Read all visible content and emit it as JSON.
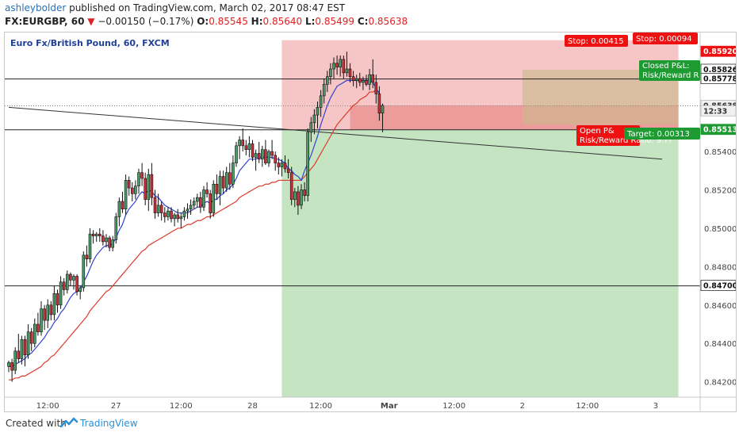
{
  "header": {
    "user": "ashleybolder",
    "published": " published on TradingView.com, March 02, 2017 08:47 EST",
    "symbol": "FX:EURGBP, 60",
    "change_text": "−0.00150 (−0.17%)",
    "o_label": "O:",
    "o_val": "0.85545",
    "h_label": "H:",
    "h_val": "0.85640",
    "l_label": "L:",
    "l_val": "0.85499",
    "c_label": "C:",
    "c_val": "0.85638"
  },
  "footer": {
    "created": "Created with",
    "brand": "TradingView"
  },
  "colors": {
    "up": "#4a9a68",
    "down": "#c8313a",
    "ema_fast": "#3344cc",
    "ema_slow": "#dd3b2b",
    "green_zone": "#9fd39a",
    "red_zone": "#f0a0a0",
    "label_red": "#ee1111",
    "label_green": "#1e9a33"
  },
  "chart_data": {
    "type": "candlestick",
    "title": "Euro Fx/British Pound, 60, FXCM",
    "y_range": [
      0.8412,
      0.8602
    ],
    "y_ticks": [
      "0.85920",
      "0.85826",
      "0.85778",
      "0.85638",
      "0.85513",
      "0.85400",
      "0.85200",
      "0.85000",
      "0.84800",
      "0.84700",
      "0.84600",
      "0.84400",
      "0.84200"
    ],
    "y_tick_values": [
      0.854,
      0.852,
      0.85,
      0.848,
      0.846,
      0.844,
      0.842
    ],
    "x_labels": [
      "12:00",
      "27",
      "12:00",
      "28",
      "12:00",
      "Mar",
      "12:00",
      "2",
      "12:00",
      "3"
    ],
    "x_label_bars": [
      12,
      33,
      53,
      75,
      96,
      117,
      137,
      158,
      178,
      199
    ],
    "price_lines": [
      0.85778,
      0.85513,
      0.847
    ],
    "dotted_line": 0.85638,
    "trendline": {
      "from": [
        0,
        0.8563
      ],
      "to": [
        201,
        0.8536
      ]
    },
    "candles": [
      [
        0.8428,
        0.8431,
        0.8425,
        0.843
      ],
      [
        0.843,
        0.8432,
        0.842,
        0.8426
      ],
      [
        0.8426,
        0.8438,
        0.8424,
        0.8436
      ],
      [
        0.8436,
        0.8445,
        0.843,
        0.8432
      ],
      [
        0.8432,
        0.8444,
        0.8429,
        0.8442
      ],
      [
        0.8442,
        0.8444,
        0.8428,
        0.8434
      ],
      [
        0.8434,
        0.845,
        0.8432,
        0.8446
      ],
      [
        0.8446,
        0.8448,
        0.8436,
        0.844
      ],
      [
        0.844,
        0.8453,
        0.8438,
        0.845
      ],
      [
        0.845,
        0.8456,
        0.8444,
        0.8446
      ],
      [
        0.8446,
        0.8462,
        0.8444,
        0.8458
      ],
      [
        0.8458,
        0.846,
        0.8447,
        0.8452
      ],
      [
        0.8452,
        0.8463,
        0.8448,
        0.846
      ],
      [
        0.846,
        0.8462,
        0.8452,
        0.8455
      ],
      [
        0.8455,
        0.847,
        0.8452,
        0.8466
      ],
      [
        0.8466,
        0.8468,
        0.8456,
        0.846
      ],
      [
        0.846,
        0.8475,
        0.8458,
        0.8472
      ],
      [
        0.8472,
        0.8474,
        0.8465,
        0.8468
      ],
      [
        0.8468,
        0.8478,
        0.8466,
        0.8476
      ],
      [
        0.8476,
        0.8477,
        0.847,
        0.8473
      ],
      [
        0.8473,
        0.8476,
        0.8468,
        0.8475
      ],
      [
        0.8475,
        0.8476,
        0.8465,
        0.8467
      ],
      [
        0.8467,
        0.847,
        0.8463,
        0.8469
      ],
      [
        0.8469,
        0.8488,
        0.8467,
        0.8486
      ],
      [
        0.8486,
        0.8491,
        0.848,
        0.8484
      ],
      [
        0.8484,
        0.85,
        0.8482,
        0.8497
      ],
      [
        0.8497,
        0.8499,
        0.8492,
        0.8496
      ],
      [
        0.8496,
        0.8498,
        0.8493,
        0.8497
      ],
      [
        0.8497,
        0.85,
        0.8493,
        0.8496
      ],
      [
        0.8496,
        0.8499,
        0.8491,
        0.8493
      ],
      [
        0.8493,
        0.8497,
        0.849,
        0.8495
      ],
      [
        0.8495,
        0.8496,
        0.8488,
        0.849
      ],
      [
        0.849,
        0.8496,
        0.8488,
        0.8494
      ],
      [
        0.8494,
        0.8508,
        0.8492,
        0.8506
      ],
      [
        0.8506,
        0.8516,
        0.8501,
        0.8514
      ],
      [
        0.8514,
        0.8519,
        0.8508,
        0.851
      ],
      [
        0.851,
        0.8528,
        0.8507,
        0.8525
      ],
      [
        0.8525,
        0.8527,
        0.8517,
        0.8521
      ],
      [
        0.8521,
        0.8524,
        0.8514,
        0.8518
      ],
      [
        0.8518,
        0.8525,
        0.8515,
        0.8522
      ],
      [
        0.8522,
        0.8531,
        0.8518,
        0.8529
      ],
      [
        0.8529,
        0.8534,
        0.8522,
        0.8526
      ],
      [
        0.8526,
        0.8529,
        0.8512,
        0.8515
      ],
      [
        0.8515,
        0.8531,
        0.8509,
        0.8528
      ],
      [
        0.8528,
        0.8534,
        0.8512,
        0.8516
      ],
      [
        0.8516,
        0.852,
        0.8505,
        0.8508
      ],
      [
        0.8508,
        0.8518,
        0.8506,
        0.8512
      ],
      [
        0.8512,
        0.8514,
        0.8504,
        0.8508
      ],
      [
        0.8508,
        0.8511,
        0.8503,
        0.8506
      ],
      [
        0.8506,
        0.8511,
        0.8504,
        0.8509
      ],
      [
        0.8509,
        0.8511,
        0.8503,
        0.8505
      ],
      [
        0.8505,
        0.8508,
        0.8501,
        0.8507
      ],
      [
        0.8507,
        0.851,
        0.8503,
        0.8505
      ],
      [
        0.8505,
        0.8508,
        0.85,
        0.8506
      ],
      [
        0.8506,
        0.8511,
        0.8504,
        0.8509
      ],
      [
        0.8509,
        0.8513,
        0.8505,
        0.851
      ],
      [
        0.851,
        0.8515,
        0.8507,
        0.8512
      ],
      [
        0.8512,
        0.8516,
        0.851,
        0.8514
      ],
      [
        0.8514,
        0.8518,
        0.8511,
        0.8516
      ],
      [
        0.8516,
        0.8519,
        0.8508,
        0.8511
      ],
      [
        0.8511,
        0.8522,
        0.8509,
        0.852
      ],
      [
        0.852,
        0.8524,
        0.8516,
        0.8518
      ],
      [
        0.8518,
        0.852,
        0.8505,
        0.8508
      ],
      [
        0.8508,
        0.8525,
        0.8506,
        0.8523
      ],
      [
        0.8523,
        0.8528,
        0.8515,
        0.8518
      ],
      [
        0.8518,
        0.853,
        0.8512,
        0.8527
      ],
      [
        0.8527,
        0.853,
        0.8518,
        0.8521
      ],
      [
        0.8521,
        0.8532,
        0.8519,
        0.8529
      ],
      [
        0.8529,
        0.8534,
        0.852,
        0.8523
      ],
      [
        0.8523,
        0.8538,
        0.8521,
        0.8534
      ],
      [
        0.8534,
        0.8545,
        0.8532,
        0.8543
      ],
      [
        0.8543,
        0.8548,
        0.8536,
        0.8546
      ],
      [
        0.8546,
        0.8552,
        0.854,
        0.8543
      ],
      [
        0.8543,
        0.8546,
        0.8538,
        0.8541
      ],
      [
        0.8541,
        0.8548,
        0.8537,
        0.8544
      ],
      [
        0.8544,
        0.8546,
        0.8535,
        0.8537
      ],
      [
        0.8537,
        0.8541,
        0.853,
        0.8539
      ],
      [
        0.8539,
        0.8545,
        0.8534,
        0.8536
      ],
      [
        0.8536,
        0.8543,
        0.8532,
        0.8541
      ],
      [
        0.8541,
        0.8546,
        0.8533,
        0.8534
      ],
      [
        0.8534,
        0.8541,
        0.8532,
        0.854
      ],
      [
        0.854,
        0.8546,
        0.8536,
        0.8538
      ],
      [
        0.8538,
        0.854,
        0.853,
        0.8534
      ],
      [
        0.8534,
        0.8537,
        0.8528,
        0.8532
      ],
      [
        0.8532,
        0.8536,
        0.8527,
        0.8534
      ],
      [
        0.8534,
        0.8538,
        0.8529,
        0.8531
      ],
      [
        0.8531,
        0.8536,
        0.8526,
        0.8529
      ],
      [
        0.8529,
        0.8532,
        0.8512,
        0.8515
      ],
      [
        0.8515,
        0.8521,
        0.8511,
        0.8519
      ],
      [
        0.8519,
        0.8522,
        0.8507,
        0.8512
      ],
      [
        0.8512,
        0.8523,
        0.851,
        0.852
      ],
      [
        0.852,
        0.8524,
        0.8514,
        0.8517
      ],
      [
        0.8517,
        0.8552,
        0.8514,
        0.855
      ],
      [
        0.855,
        0.8558,
        0.8545,
        0.8555
      ],
      [
        0.8555,
        0.8562,
        0.8549,
        0.8559
      ],
      [
        0.8559,
        0.8566,
        0.8552,
        0.8563
      ],
      [
        0.8563,
        0.8572,
        0.8558,
        0.8569
      ],
      [
        0.8569,
        0.8578,
        0.8565,
        0.8575
      ],
      [
        0.8575,
        0.8582,
        0.8571,
        0.8579
      ],
      [
        0.8579,
        0.8586,
        0.8575,
        0.8583
      ],
      [
        0.8583,
        0.8589,
        0.8578,
        0.8586
      ],
      [
        0.8586,
        0.859,
        0.858,
        0.8584
      ],
      [
        0.8584,
        0.859,
        0.8579,
        0.8588
      ],
      [
        0.8588,
        0.859,
        0.8578,
        0.8581
      ],
      [
        0.8581,
        0.8592,
        0.8579,
        0.8583
      ],
      [
        0.8583,
        0.8586,
        0.8576,
        0.8579
      ],
      [
        0.8579,
        0.8582,
        0.8574,
        0.8577
      ],
      [
        0.8577,
        0.858,
        0.8573,
        0.8578
      ],
      [
        0.8578,
        0.8581,
        0.8574,
        0.8576
      ],
      [
        0.8576,
        0.8579,
        0.8572,
        0.8577
      ],
      [
        0.8577,
        0.858,
        0.8574,
        0.8575
      ],
      [
        0.8575,
        0.8583,
        0.8572,
        0.858
      ],
      [
        0.858,
        0.8588,
        0.8573,
        0.8576
      ],
      [
        0.8576,
        0.858,
        0.8565,
        0.857
      ],
      [
        0.857,
        0.8574,
        0.8556,
        0.856
      ],
      [
        0.856,
        0.8565,
        0.855,
        0.8564
      ]
    ],
    "ema_fast": [
      0.8428,
      0.8428,
      0.8429,
      0.843,
      0.8431,
      0.8432,
      0.8434,
      0.8435,
      0.8437,
      0.8439,
      0.8441,
      0.8443,
      0.8446,
      0.8448,
      0.8451,
      0.8453,
      0.8456,
      0.8458,
      0.8461,
      0.8464,
      0.8466,
      0.8467,
      0.8468,
      0.8472,
      0.8475,
      0.8479,
      0.8483,
      0.8486,
      0.8488,
      0.849,
      0.8491,
      0.8491,
      0.8492,
      0.8495,
      0.8499,
      0.8502,
      0.8507,
      0.851,
      0.8512,
      0.8514,
      0.8517,
      0.8519,
      0.8518,
      0.852,
      0.8519,
      0.8517,
      0.8516,
      0.8514,
      0.8512,
      0.8511,
      0.851,
      0.8509,
      0.8508,
      0.8508,
      0.8508,
      0.8508,
      0.8509,
      0.851,
      0.8511,
      0.8511,
      0.8513,
      0.8514,
      0.8513,
      0.8515,
      0.8515,
      0.8517,
      0.8518,
      0.852,
      0.8521,
      0.8523,
      0.8526,
      0.853,
      0.8532,
      0.8534,
      0.8536,
      0.8536,
      0.8536,
      0.8537,
      0.8537,
      0.8537,
      0.8537,
      0.8537,
      0.8536,
      0.8536,
      0.8535,
      0.8534,
      0.8531,
      0.853,
      0.8528,
      0.8527,
      0.8525,
      0.853,
      0.8534,
      0.8538,
      0.8543,
      0.8548,
      0.8554,
      0.8559,
      0.8564,
      0.8568,
      0.8571,
      0.8574,
      0.8575,
      0.8576,
      0.8577,
      0.8577,
      0.8577,
      0.8577,
      0.8577,
      0.8577,
      0.8577,
      0.8577,
      0.8576,
      0.8573,
      0.857
    ],
    "ema_slow": [
      0.8421,
      0.8421,
      0.8422,
      0.8422,
      0.8423,
      0.8423,
      0.8424,
      0.8425,
      0.8426,
      0.8427,
      0.8428,
      0.843,
      0.8431,
      0.8433,
      0.8434,
      0.8436,
      0.8438,
      0.844,
      0.8442,
      0.8444,
      0.8446,
      0.8448,
      0.845,
      0.8452,
      0.8454,
      0.8457,
      0.8459,
      0.8461,
      0.8463,
      0.8465,
      0.8467,
      0.8468,
      0.847,
      0.8472,
      0.8474,
      0.8476,
      0.8478,
      0.848,
      0.8482,
      0.8484,
      0.8486,
      0.8488,
      0.8489,
      0.8491,
      0.8492,
      0.8493,
      0.8494,
      0.8495,
      0.8496,
      0.8497,
      0.8498,
      0.8499,
      0.85,
      0.85,
      0.8501,
      0.8502,
      0.8502,
      0.8503,
      0.8504,
      0.8504,
      0.8505,
      0.8506,
      0.8506,
      0.8507,
      0.8508,
      0.8509,
      0.851,
      0.8511,
      0.8512,
      0.8513,
      0.8514,
      0.8516,
      0.8517,
      0.8518,
      0.8519,
      0.852,
      0.8521,
      0.8522,
      0.8522,
      0.8523,
      0.8523,
      0.8524,
      0.8524,
      0.8525,
      0.8525,
      0.8525,
      0.8525,
      0.8525,
      0.8525,
      0.8525,
      0.8525,
      0.8527,
      0.8529,
      0.8531,
      0.8533,
      0.8536,
      0.8539,
      0.8542,
      0.8545,
      0.8548,
      0.8551,
      0.8554,
      0.8556,
      0.8558,
      0.856,
      0.8562,
      0.8564,
      0.8565,
      0.8567,
      0.8568,
      0.8569,
      0.8571,
      0.8571,
      0.8572,
      0.8571
    ],
    "green_zone": {
      "from_bar": 84,
      "to_bar": 206,
      "top": 0.85513,
      "bottom": 0.8412
    },
    "red_zone": {
      "from_bar": 84,
      "to_bar": 206,
      "top": 0.8598,
      "bottom": 0.85513
    },
    "red_zone2": {
      "from_bar": 105,
      "to_bar": 206,
      "top": 0.8564,
      "bottom": 0.85513
    },
    "position_box": {
      "from_bar": 158,
      "to_bar": 206,
      "top": 0.85826,
      "bottom": 0.8554
    },
    "labels": [
      {
        "text": "Stop: 0.00415",
        "style": "red"
      },
      {
        "text": "Stop: 0.00094",
        "style": "red"
      },
      {
        "text": "Closed P&L:",
        "style": "green"
      },
      {
        "text": "Risk/Reward R",
        "style": "green"
      },
      {
        "text": "Open P&",
        "style": "red"
      },
      {
        "text": "Risk/Reward Ratio: 9.??",
        "style": "red"
      },
      {
        "text": "Target: 0.00313",
        "style": "green"
      }
    ],
    "price_tags": [
      {
        "text": "0.85920",
        "style": "red"
      },
      {
        "text": "0.85826",
        "style": "white"
      },
      {
        "text": "0.85778",
        "style": "white"
      },
      {
        "text": "0.85638",
        "style": "gray"
      },
      {
        "text": "12:33",
        "style": "gray"
      },
      {
        "text": "0.85513",
        "style": "green"
      },
      {
        "text": "0.84700",
        "style": "white"
      }
    ]
  }
}
